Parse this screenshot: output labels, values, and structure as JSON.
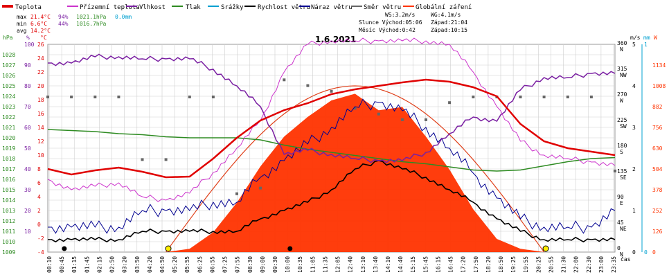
{
  "legend": {
    "items": [
      {
        "label": "Teplota",
        "color": "#e00000"
      },
      {
        "label": "Přízemní teplota",
        "color": "#cc33cc"
      },
      {
        "label": "Vlhkost",
        "color": "#7a1fa2"
      },
      {
        "label": "Tlak",
        "color": "#2e8b22"
      },
      {
        "label": "Srážky",
        "color": "#00a0d0"
      },
      {
        "label": "Rychlost větru",
        "color": "#000000"
      },
      {
        "label": "Náraz větru",
        "color": "#000090"
      },
      {
        "label": "Směr větru",
        "color": "#666666"
      },
      {
        "label": "Globální záření",
        "color": "#ff3300"
      }
    ]
  },
  "stats": {
    "max": {
      "label": "max",
      "temp": "21.4°C",
      "hum": "94%",
      "press": "1021.1hPa",
      "rain": "0.0mm"
    },
    "min": {
      "label": "min",
      "temp": "6.6°C",
      "hum": "44%",
      "press": "1016.7hPa"
    },
    "avg": {
      "label": "avg",
      "temp": "14.2°C"
    }
  },
  "sun": {
    "ws": "WS:3.2m/s",
    "wg": "WG:4.1m/s",
    "sun_row": "Slunce Východ:05:06",
    "sun_set": "Západ:21:04",
    "moon_row": "Měsíc  Východ:0:42",
    "moon_set": "Západ:10:15"
  },
  "colors": {
    "temp": "#e00000",
    "feel": "#cc33cc",
    "hum": "#7a1fa2",
    "press": "#2e8b22",
    "rain": "#00a0d0",
    "wind": "#000000",
    "gust": "#000090",
    "dir": "#666666",
    "rad": "#ff3300",
    "grid": "#cfcfcf"
  },
  "chart_data": {
    "type": "line",
    "title": "1.6.2021",
    "xlabel": "čas",
    "x_ticks": [
      "00:10",
      "00:45",
      "01:15",
      "01:45",
      "02:15",
      "02:50",
      "03:20",
      "03:50",
      "04:20",
      "04:50",
      "05:20",
      "05:55",
      "06:25",
      "06:55",
      "07:25",
      "07:55",
      "08:30",
      "09:00",
      "09:30",
      "10:00",
      "10:35",
      "11:05",
      "11:35",
      "12:05",
      "12:40",
      "13:10",
      "13:40",
      "14:10",
      "14:40",
      "15:15",
      "15:45",
      "16:15",
      "16:45",
      "17:20",
      "17:50",
      "18:20",
      "18:50",
      "19:25",
      "19:55",
      "20:25",
      "20:55",
      "21:30",
      "22:00",
      "22:30",
      "23:00",
      "23:35"
    ],
    "axes": {
      "pressure": {
        "label": "hPa",
        "range": [
          1009,
          1029
        ],
        "ticks": [
          "1009",
          "1010",
          "1011",
          "1012",
          "1013",
          "1014",
          "1015",
          "1016",
          "1017",
          "1018",
          "1019",
          "1020",
          "1021",
          "1022",
          "1023",
          "1024",
          "1025",
          "1026",
          "1027",
          "1028"
        ]
      },
      "humidity": {
        "label": "%",
        "range": [
          0,
          100
        ],
        "ticks": [
          "10",
          "20",
          "30",
          "40",
          "50",
          "60",
          "70",
          "80",
          "90",
          "100"
        ]
      },
      "temperature": {
        "label": "°C",
        "range": [
          -4,
          26
        ],
        "ticks": [
          "-4",
          "-2",
          "0",
          "2",
          "4",
          "6",
          "8",
          "10",
          "12",
          "14",
          "16",
          "18",
          "20",
          "22",
          "24",
          "26"
        ]
      },
      "wind_speed": {
        "label": "m/s",
        "range": [
          0,
          5
        ],
        "ticks": [
          "0",
          "1",
          "2",
          "3",
          "4",
          "5"
        ]
      },
      "rain": {
        "label": "mm",
        "range": [
          0,
          1
        ],
        "ticks": [
          "0",
          "1"
        ]
      },
      "radiation": {
        "label": "W",
        "range": [
          0,
          1260
        ],
        "ticks": [
          "0",
          "126",
          "252",
          "378",
          "504",
          "630",
          "756",
          "882",
          "1008",
          "1134"
        ]
      },
      "wind_dir": {
        "ticks": [
          "0 N",
          "45 NE",
          "90 E",
          "135 SE",
          "180 S",
          "225 SW",
          "270 W",
          "315 NW",
          "360 N"
        ]
      }
    },
    "x_hours": [
      0,
      1,
      2,
      3,
      4,
      5,
      6,
      7,
      8,
      9,
      10,
      11,
      12,
      13,
      14,
      15,
      16,
      17,
      18,
      19,
      20,
      21,
      22,
      23,
      24
    ],
    "series": [
      {
        "name": "Teplota",
        "axis": "temperature",
        "values": [
          8.0,
          7.2,
          7.8,
          8.2,
          7.6,
          6.8,
          6.9,
          9.5,
          12.5,
          15.0,
          16.5,
          17.5,
          18.8,
          19.5,
          20.0,
          20.5,
          20.9,
          20.6,
          19.8,
          18.5,
          14.5,
          12.0,
          11.0,
          10.5,
          10.0
        ]
      },
      {
        "name": "Přízemní teplota",
        "axis": "temperature",
        "values": [
          6.5,
          5.0,
          5.5,
          6.0,
          4.0,
          3.5,
          4.5,
          7.5,
          11.0,
          15.0,
          22.0,
          26.0,
          26.5,
          26.5,
          26.5,
          26.5,
          26.5,
          26.0,
          22.0,
          17.0,
          12.0,
          10.0,
          9.5,
          9.0,
          8.5
        ]
      },
      {
        "name": "Vlhkost",
        "axis": "humidity",
        "values": [
          91,
          91,
          94,
          94,
          93,
          93,
          93,
          88,
          80,
          70,
          47,
          49,
          47,
          45,
          44,
          44,
          48,
          57,
          65,
          63,
          78,
          84,
          84,
          86,
          86
        ]
      },
      {
        "name": "Tlak",
        "axis": "pressure",
        "values": [
          1020.8,
          1020.7,
          1020.6,
          1020.4,
          1020.3,
          1020.1,
          1020.0,
          1020.0,
          1020.0,
          1019.8,
          1019.3,
          1018.9,
          1018.6,
          1018.3,
          1018.0,
          1017.7,
          1017.5,
          1017.2,
          1016.9,
          1016.8,
          1016.9,
          1017.3,
          1017.7,
          1018.0,
          1018.1
        ]
      },
      {
        "name": "Rychlost větru",
        "axis": "wind_speed",
        "values": [
          0.3,
          0.3,
          0.3,
          0.3,
          0.5,
          0.5,
          0.5,
          0.5,
          0.5,
          0.8,
          1.0,
          1.2,
          1.5,
          2.0,
          2.2,
          2.0,
          1.8,
          1.5,
          1.2,
          0.8,
          0.5,
          0.3,
          0.3,
          0.3,
          0.3
        ]
      },
      {
        "name": "Náraz větru",
        "axis": "wind_speed",
        "values": [
          0.6,
          0.6,
          0.6,
          0.6,
          1.0,
          1.0,
          1.0,
          1.2,
          1.2,
          1.8,
          2.2,
          2.6,
          3.0,
          3.5,
          3.6,
          3.4,
          3.0,
          2.5,
          1.9,
          1.3,
          0.8,
          0.6,
          0.6,
          0.6,
          1.0
        ]
      },
      {
        "name": "Globální záření",
        "axis": "radiation",
        "values": [
          0,
          0,
          0,
          0,
          0,
          0,
          20,
          120,
          300,
          520,
          700,
          820,
          920,
          960,
          860,
          880,
          700,
          500,
          260,
          80,
          20,
          0,
          0,
          0,
          0
        ]
      },
      {
        "name": "Směr větru",
        "axis": "wind_dir",
        "values": [
          270,
          270,
          270,
          270,
          160,
          160,
          270,
          270,
          100,
          110,
          300,
          290,
          280,
          250,
          240,
          230,
          230,
          260,
          270,
          270,
          270,
          270,
          270,
          270,
          140
        ]
      }
    ]
  }
}
